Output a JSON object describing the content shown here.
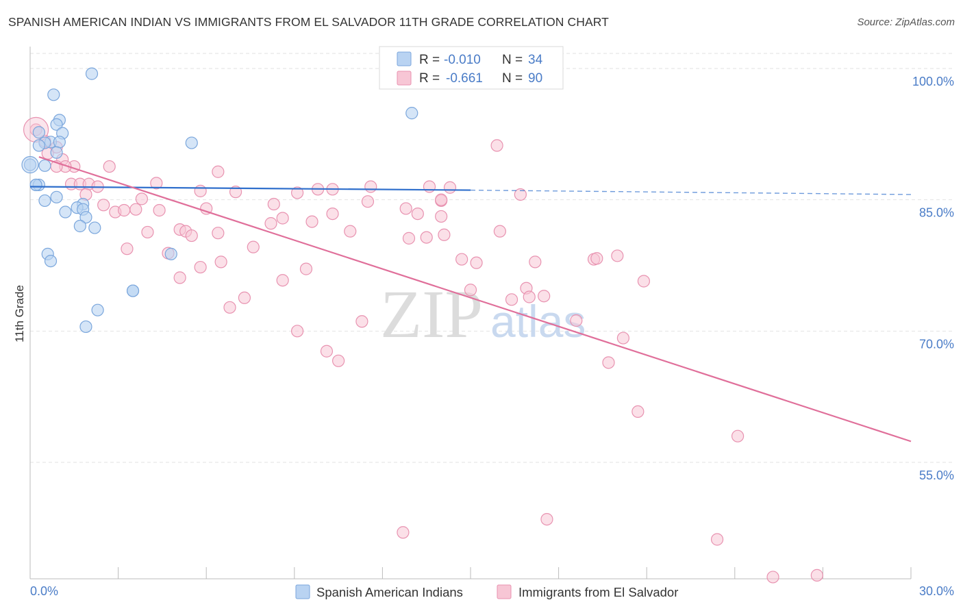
{
  "title": "SPANISH AMERICAN INDIAN VS IMMIGRANTS FROM EL SALVADOR 11TH GRADE CORRELATION CHART",
  "source": "Source: ZipAtlas.com",
  "watermark": {
    "zip": "ZIP",
    "atlas": "atlas"
  },
  "colors": {
    "blue_fill": "#b9d3f2",
    "blue_stroke": "#7aa6dc",
    "blue_line": "#2f6fcc",
    "pink_fill": "#f7c6d5",
    "pink_stroke": "#e892b0",
    "pink_line": "#e06f9a",
    "value_text": "#4a7cc7",
    "grid": "#e2e2e2"
  },
  "legend": {
    "items": [
      {
        "r_label": "R =",
        "r_value": "-0.010",
        "n_label": "N =",
        "n_value": "34"
      },
      {
        "r_label": "R =",
        "r_value": "-0.661",
        "n_label": "N =",
        "n_value": "90"
      }
    ]
  },
  "bottom_legend": [
    "Spanish American Indians",
    "Immigrants from El Salvador"
  ],
  "chart_data": {
    "type": "scatter",
    "title": "SPANISH AMERICAN INDIAN VS IMMIGRANTS FROM EL SALVADOR 11TH GRADE CORRELATION CHART",
    "xlabel": "",
    "ylabel": "11th Grade",
    "xlim": [
      0,
      30
    ],
    "ylim": [
      41.7,
      102.5
    ],
    "x_tick_labels": [
      "0.0%",
      "30.0%"
    ],
    "y_ticks": [
      55,
      70,
      85,
      100
    ],
    "y_tick_labels": [
      "55.0%",
      "70.0%",
      "85.0%",
      "100.0%"
    ],
    "grid": true,
    "series": [
      {
        "name": "Spanish American Indians",
        "color": "#b9d3f2",
        "trend": {
          "x": [
            0.0,
            15.0
          ],
          "y": [
            86.5,
            86.1
          ],
          "dashed_extension_to": 30.0,
          "dashed_end_y": 85.6
        },
        "points": [
          [
            2.1,
            99.4
          ],
          [
            0.8,
            97.0
          ],
          [
            1.0,
            94.1
          ],
          [
            0.9,
            93.6
          ],
          [
            1.1,
            92.6
          ],
          [
            0.3,
            92.7
          ],
          [
            0.7,
            91.6
          ],
          [
            1.0,
            91.6
          ],
          [
            0.5,
            91.5
          ],
          [
            0.3,
            91.2
          ],
          [
            0.9,
            90.4
          ],
          [
            0.0,
            89.0
          ],
          [
            0.5,
            88.9
          ],
          [
            0.2,
            86.7
          ],
          [
            0.3,
            86.7
          ],
          [
            0.9,
            85.3
          ],
          [
            0.5,
            84.9
          ],
          [
            1.8,
            84.5
          ],
          [
            1.6,
            84.1
          ],
          [
            1.8,
            83.9
          ],
          [
            1.2,
            83.6
          ],
          [
            1.9,
            83.0
          ],
          [
            1.7,
            82.0
          ],
          [
            2.2,
            81.8
          ],
          [
            0.6,
            78.8
          ],
          [
            0.7,
            78.0
          ],
          [
            4.8,
            78.8
          ],
          [
            3.5,
            74.6
          ],
          [
            3.5,
            74.6
          ],
          [
            2.3,
            72.4
          ],
          [
            1.9,
            70.5
          ],
          [
            13.0,
            94.9
          ],
          [
            5.5,
            91.5
          ],
          [
            0.2,
            86.7
          ]
        ]
      },
      {
        "name": "Immigrants from El Salvador",
        "color": "#f7c6d5",
        "trend": {
          "x": [
            0.3,
            30.0
          ],
          "y": [
            89.9,
            57.4
          ]
        },
        "points": [
          [
            0.2,
            93.0
          ],
          [
            0.5,
            91.7
          ],
          [
            0.9,
            91.0
          ],
          [
            0.6,
            90.3
          ],
          [
            1.1,
            89.6
          ],
          [
            1.5,
            88.8
          ],
          [
            1.2,
            88.8
          ],
          [
            0.9,
            88.8
          ],
          [
            2.7,
            88.8
          ],
          [
            6.4,
            88.2
          ],
          [
            1.4,
            86.8
          ],
          [
            1.7,
            86.8
          ],
          [
            2.0,
            86.8
          ],
          [
            2.3,
            86.5
          ],
          [
            4.3,
            86.9
          ],
          [
            5.8,
            86.0
          ],
          [
            7.0,
            85.9
          ],
          [
            9.1,
            85.8
          ],
          [
            9.8,
            86.2
          ],
          [
            10.3,
            86.2
          ],
          [
            11.6,
            86.5
          ],
          [
            13.6,
            86.5
          ],
          [
            1.9,
            85.6
          ],
          [
            3.8,
            85.1
          ],
          [
            2.5,
            84.4
          ],
          [
            8.3,
            84.5
          ],
          [
            11.5,
            84.8
          ],
          [
            12.8,
            84.0
          ],
          [
            14.0,
            84.9
          ],
          [
            2.9,
            83.6
          ],
          [
            3.2,
            83.8
          ],
          [
            3.6,
            83.9
          ],
          [
            4.4,
            83.8
          ],
          [
            6.0,
            84.0
          ],
          [
            10.3,
            83.4
          ],
          [
            13.2,
            83.4
          ],
          [
            14.0,
            83.1
          ],
          [
            8.6,
            82.9
          ],
          [
            9.6,
            82.5
          ],
          [
            8.2,
            82.3
          ],
          [
            5.1,
            81.6
          ],
          [
            5.3,
            81.4
          ],
          [
            4.0,
            81.3
          ],
          [
            5.5,
            80.9
          ],
          [
            10.9,
            81.4
          ],
          [
            12.9,
            80.6
          ],
          [
            13.5,
            80.7
          ],
          [
            14.1,
            81.0
          ],
          [
            16.0,
            81.4
          ],
          [
            3.3,
            79.4
          ],
          [
            4.7,
            78.9
          ],
          [
            7.6,
            79.6
          ],
          [
            6.4,
            81.2
          ],
          [
            14.7,
            78.2
          ],
          [
            15.2,
            77.8
          ],
          [
            17.2,
            77.9
          ],
          [
            19.2,
            78.2
          ],
          [
            19.3,
            78.3
          ],
          [
            20.0,
            78.6
          ],
          [
            6.5,
            77.9
          ],
          [
            5.8,
            77.3
          ],
          [
            9.4,
            77.1
          ],
          [
            5.1,
            76.1
          ],
          [
            8.6,
            75.8
          ],
          [
            20.9,
            75.7
          ],
          [
            15.0,
            74.7
          ],
          [
            16.9,
            74.9
          ],
          [
            17.0,
            73.9
          ],
          [
            16.4,
            73.6
          ],
          [
            17.5,
            74.0
          ],
          [
            7.3,
            73.8
          ],
          [
            6.8,
            72.7
          ],
          [
            11.3,
            71.1
          ],
          [
            18.6,
            71.2
          ],
          [
            9.1,
            70.0
          ],
          [
            20.2,
            69.2
          ],
          [
            10.1,
            67.7
          ],
          [
            10.5,
            66.6
          ],
          [
            19.7,
            66.4
          ],
          [
            20.7,
            60.8
          ],
          [
            24.1,
            58.0
          ],
          [
            12.7,
            47.0
          ],
          [
            17.6,
            48.5
          ],
          [
            23.4,
            46.2
          ],
          [
            26.8,
            42.1
          ],
          [
            25.3,
            41.9
          ],
          [
            14.0,
            85.0
          ],
          [
            15.9,
            91.2
          ],
          [
            14.3,
            86.4
          ],
          [
            16.7,
            85.6
          ]
        ]
      }
    ]
  }
}
